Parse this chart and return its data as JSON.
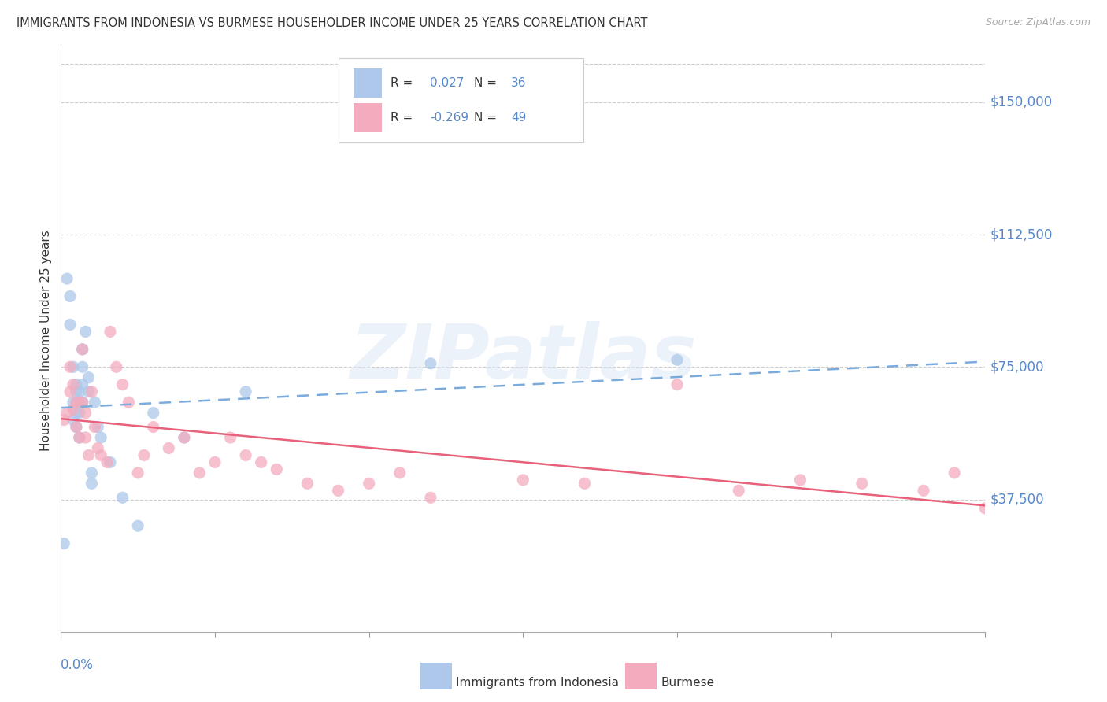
{
  "title": "IMMIGRANTS FROM INDONESIA VS BURMESE HOUSEHOLDER INCOME UNDER 25 YEARS CORRELATION CHART",
  "source": "Source: ZipAtlas.com",
  "ylabel": "Householder Income Under 25 years",
  "ytick_labels": [
    "$37,500",
    "$75,000",
    "$112,500",
    "$150,000"
  ],
  "ytick_values": [
    37500,
    75000,
    112500,
    150000
  ],
  "ymin": 0,
  "ymax": 165000,
  "xmin": 0.0,
  "xmax": 0.3,
  "watermark": "ZIPatlas",
  "legend_indonesia_r": "0.027",
  "legend_indonesia_n": "36",
  "legend_burmese_r": "-0.269",
  "legend_burmese_n": "49",
  "color_indonesia": "#adc8ea",
  "color_burmese": "#f4abbe",
  "color_indonesia_line": "#7aabdc",
  "color_burmese_line": "#e8607a",
  "color_blue_text": "#5588cc",
  "color_dark_text": "#333333",
  "color_source": "#aaaaaa",
  "color_grid": "#cccccc",
  "indonesia_x": [
    0.001,
    0.002,
    0.003,
    0.003,
    0.004,
    0.004,
    0.004,
    0.005,
    0.005,
    0.005,
    0.005,
    0.005,
    0.006,
    0.006,
    0.006,
    0.006,
    0.007,
    0.007,
    0.007,
    0.007,
    0.008,
    0.009,
    0.009,
    0.01,
    0.01,
    0.011,
    0.012,
    0.013,
    0.016,
    0.02,
    0.025,
    0.03,
    0.04,
    0.06,
    0.12,
    0.2
  ],
  "indonesia_y": [
    25000,
    100000,
    95000,
    87000,
    65000,
    75000,
    60000,
    70000,
    68000,
    65000,
    62000,
    58000,
    68000,
    65000,
    62000,
    55000,
    80000,
    75000,
    70000,
    65000,
    85000,
    72000,
    68000,
    45000,
    42000,
    65000,
    58000,
    55000,
    48000,
    38000,
    30000,
    62000,
    55000,
    68000,
    76000,
    77000
  ],
  "burmese_x": [
    0.001,
    0.002,
    0.003,
    0.003,
    0.004,
    0.004,
    0.005,
    0.005,
    0.006,
    0.006,
    0.007,
    0.007,
    0.008,
    0.008,
    0.009,
    0.01,
    0.011,
    0.012,
    0.013,
    0.015,
    0.016,
    0.018,
    0.02,
    0.022,
    0.025,
    0.027,
    0.03,
    0.035,
    0.04,
    0.045,
    0.05,
    0.055,
    0.06,
    0.065,
    0.07,
    0.08,
    0.09,
    0.1,
    0.11,
    0.12,
    0.15,
    0.17,
    0.2,
    0.22,
    0.24,
    0.26,
    0.28,
    0.29,
    0.3
  ],
  "burmese_y": [
    60000,
    62000,
    75000,
    68000,
    63000,
    70000,
    65000,
    58000,
    65000,
    55000,
    80000,
    65000,
    62000,
    55000,
    50000,
    68000,
    58000,
    52000,
    50000,
    48000,
    85000,
    75000,
    70000,
    65000,
    45000,
    50000,
    58000,
    52000,
    55000,
    45000,
    48000,
    55000,
    50000,
    48000,
    46000,
    42000,
    40000,
    42000,
    45000,
    38000,
    43000,
    42000,
    70000,
    40000,
    43000,
    42000,
    40000,
    45000,
    35000
  ]
}
